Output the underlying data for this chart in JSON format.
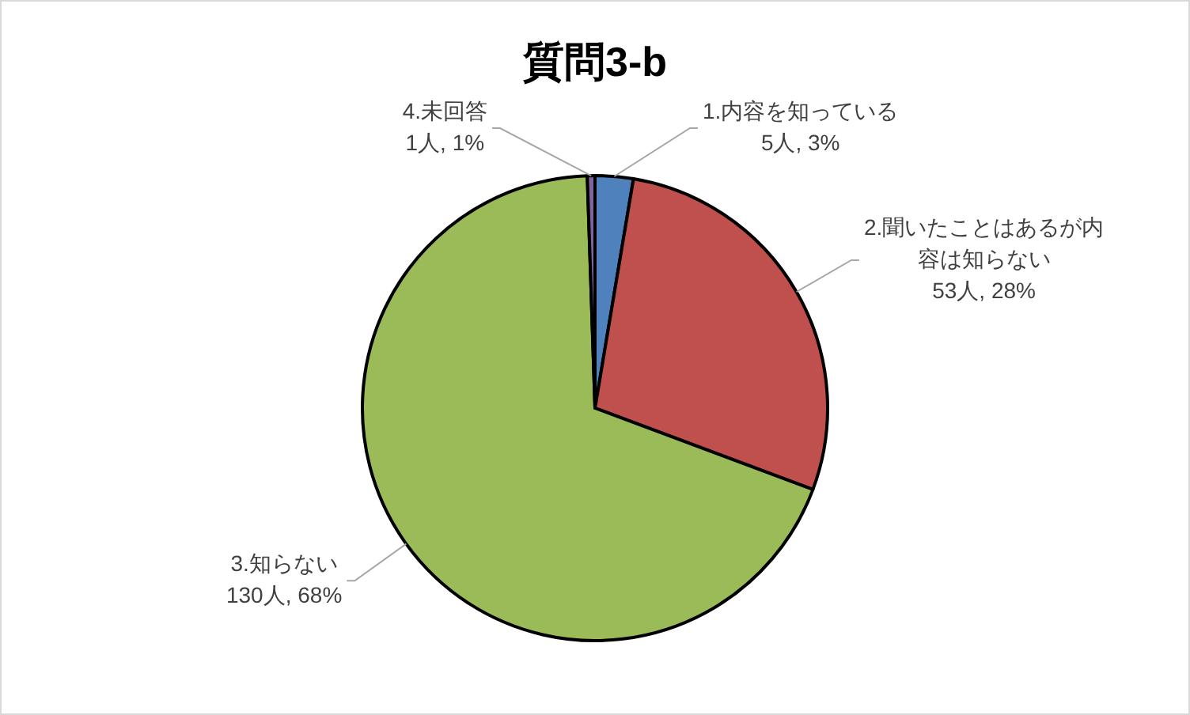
{
  "chart_data": {
    "type": "pie",
    "title": "質問3-b",
    "categories": [
      "1.内容を知っている",
      "2.聞いたことはあるが内容は知らない",
      "3.知らない",
      "4.未回答"
    ],
    "values": [
      5,
      53,
      130,
      1
    ],
    "value_labels": [
      "5人, 3%",
      "53人, 28%",
      "130人, 68%",
      "1人, 1%"
    ],
    "colors": [
      "#4f81bd",
      "#c0504d",
      "#9bbb59",
      "#8064a2"
    ]
  }
}
